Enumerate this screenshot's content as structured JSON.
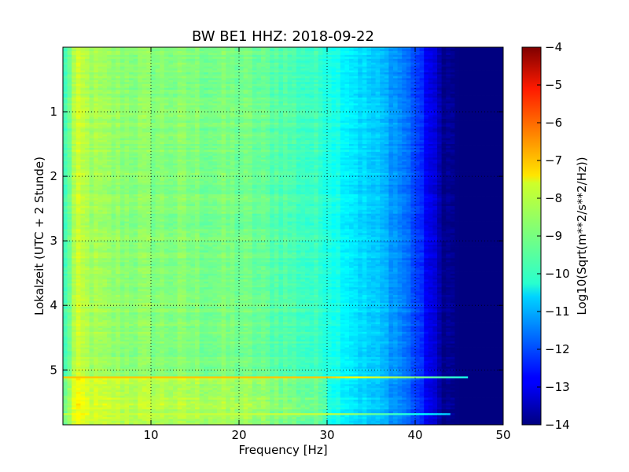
{
  "chart_data": {
    "type": "heatmap",
    "title": "BW BE1 HHZ: 2018-09-22",
    "xlabel": "Frequency [Hz]",
    "ylabel": "Lokalzeit (UTC + 2 Stunde)",
    "xlim": [
      0,
      50
    ],
    "ylim": [
      5.85,
      0
    ],
    "xticks": [
      10,
      20,
      30,
      40,
      50
    ],
    "yticks": [
      1,
      2,
      3,
      4,
      5
    ],
    "grid": true,
    "colormap": "jet",
    "colorbar": {
      "label": "Log10(Sqrt(m**2/s**2/Hz))",
      "range": [
        -14,
        -4
      ],
      "ticks": [
        -4,
        -5,
        -6,
        -7,
        -8,
        -9,
        -10,
        -11,
        -12,
        -13,
        -14
      ]
    },
    "spectral_profile": {
      "frequency_hz": [
        0.3,
        1.5,
        3,
        5,
        10,
        15,
        20,
        25,
        30,
        32,
        34,
        36,
        38,
        40,
        41,
        42,
        43,
        45,
        50
      ],
      "log_amplitude": [
        -9.6,
        -8.3,
        -8.6,
        -8.8,
        -8.9,
        -9.0,
        -9.1,
        -9.4,
        -9.8,
        -10.2,
        -10.6,
        -10.9,
        -11.3,
        -12.0,
        -12.6,
        -13.1,
        -13.7,
        -14.0,
        -14.0
      ]
    },
    "bands": [
      {
        "time_h": 5.12,
        "frequency_range_hz": [
          0,
          46
        ],
        "log_amplitude": -7.2
      },
      {
        "time_h": 5.68,
        "frequency_range_hz": [
          0,
          44
        ],
        "log_amplitude": -8.3
      }
    ],
    "elevated_period": {
      "time_range_h": [
        5.1,
        5.85
      ],
      "frequency_range_hz": [
        0,
        30
      ],
      "log_amplitude_increase": 0.6
    }
  }
}
